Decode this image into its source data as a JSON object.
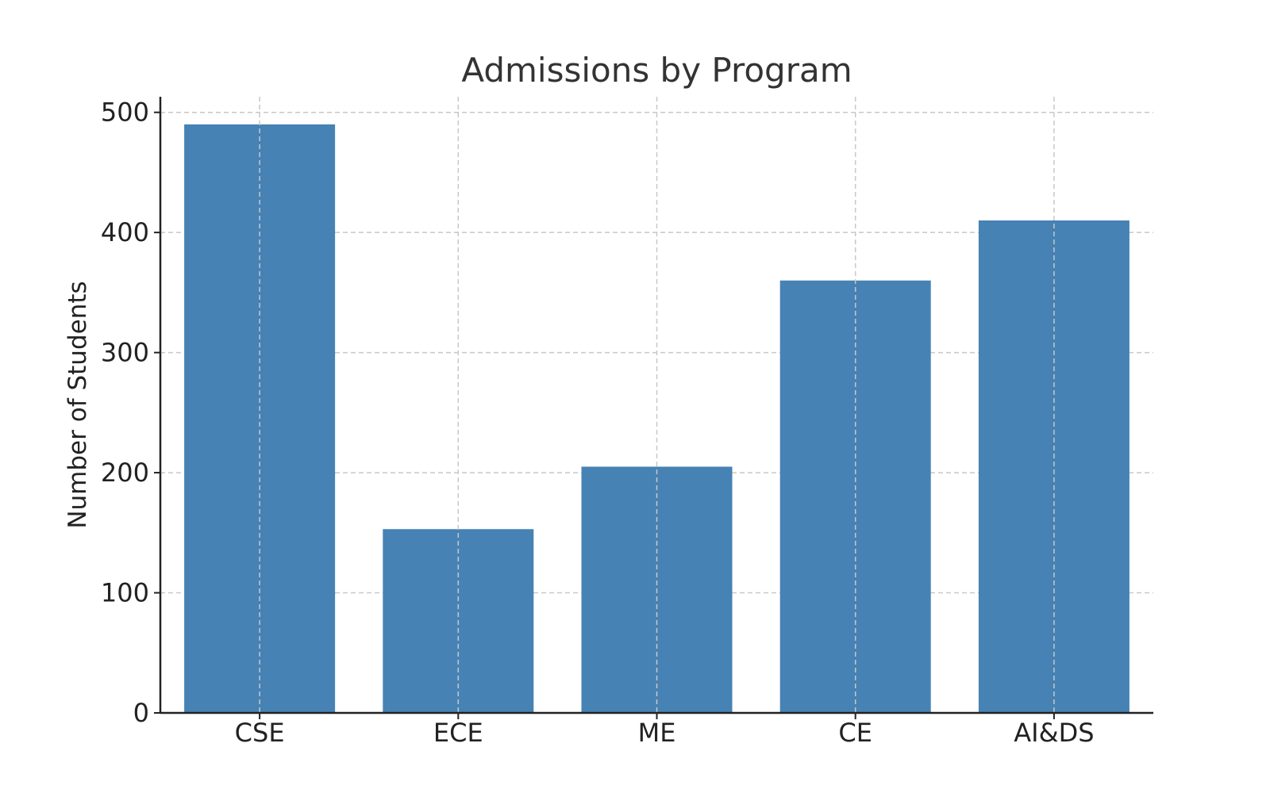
{
  "chart_data": {
    "type": "bar",
    "title": "Admissions by Program",
    "xlabel": "",
    "ylabel": "Number of Students",
    "categories": [
      "CSE",
      "ECE",
      "ME",
      "CE",
      "AI&DS"
    ],
    "values": [
      490,
      153,
      205,
      360,
      410
    ],
    "ylim": [
      0,
      513
    ],
    "yticks": [
      0,
      100,
      200,
      300,
      400,
      500
    ],
    "grid": true,
    "legend": "none",
    "colors": {
      "bar": "#4682b4",
      "grid": "#c8c8c8",
      "axis": "#222222",
      "text": "#222222",
      "title": "#333333"
    }
  }
}
